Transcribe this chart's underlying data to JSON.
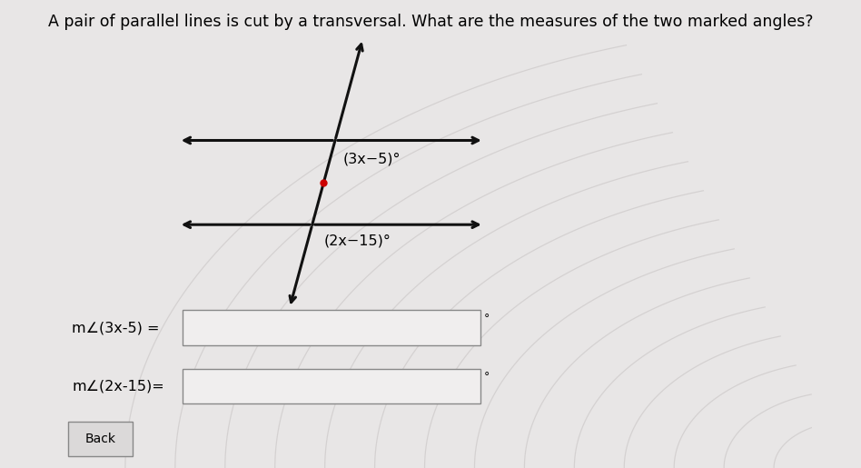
{
  "title": "A pair of parallel lines is cut by a transversal. What are the measures of the two marked angles?",
  "title_fontsize": 12.5,
  "bg_color": "#e8e6e6",
  "line1_label": "(3x−5)°",
  "line2_label": "(2x−15)°",
  "angle1_label": "m∠(3x-5) =",
  "angle2_label": "m∠(2x-15)=",
  "back_label": "Back",
  "dot_color": "#cc0000",
  "line_color": "#111111",
  "box_color": "#f0eeee",
  "box_border": "#888888",
  "degree_symbol": "°",
  "ripple_color": "#c8c4c4"
}
